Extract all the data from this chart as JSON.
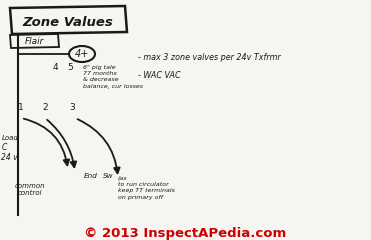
{
  "bg_color": "#f0ede8",
  "paper_color": "#f7f5f1",
  "line_color": "#1a1a1a",
  "copyright_color": "#cc0000",
  "copyright_text": "© 2013 InspectAPedia.com",
  "title_box_text": "Zone Values",
  "sub_box_text": "Flair",
  "note1": "- max 3 zone valves per 24v Txfrmr",
  "note2": "- WAC VAC",
  "note3": "6\" pig tale\n77 months\n& decrease\nbalance, cur losses",
  "note4": "(as\nto run circulator\nkeep TT terminals\non primary off",
  "label_end": "End",
  "label_sw": "Sw",
  "label_common": "common\ncontrol",
  "label_load": "Load",
  "label_24v": "24 v",
  "label_c": "C"
}
